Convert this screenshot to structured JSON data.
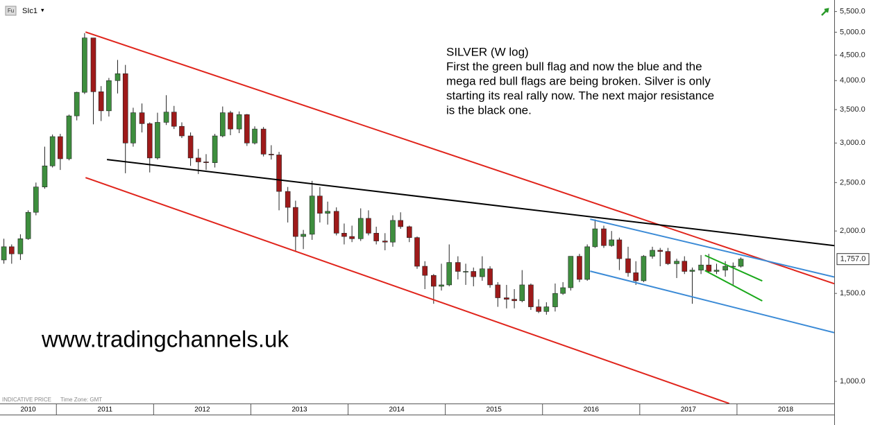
{
  "toolbar": {
    "badge": "Fu",
    "instrument": "SIc1",
    "menu": "▾"
  },
  "chart_data": {
    "type": "candlestick",
    "title": "SILVER (W log)",
    "annotation": [
      "First the green bull flag and now the blue and the",
      "mega red bull flags are being broken. Silver is only",
      "starting its real rally now. The next major resistance",
      "is the black one."
    ],
    "watermark": "www.tradingchannels.uk",
    "footer_note": "INDICATIVE PRICE",
    "time_zone": "Time Zone: GMT",
    "log_scale": true,
    "grid": false,
    "up_color": "#3e8e3e",
    "down_color": "#9e1a1a",
    "xlim": [
      2010.42,
      2019.0
    ],
    "xticks": [
      2010,
      2011,
      2012,
      2013,
      2014,
      2015,
      2016,
      2017,
      2018
    ],
    "ylim": [
      903,
      5800
    ],
    "yticks": [
      {
        "value": 1000,
        "label": "1,000.0"
      },
      {
        "value": 1500,
        "label": "1,500.0"
      },
      {
        "value": 2000,
        "label": "2,000.0"
      },
      {
        "value": 2500,
        "label": "2,500.0"
      },
      {
        "value": 3000,
        "label": "3,000.0"
      },
      {
        "value": 3500,
        "label": "3,500.0"
      },
      {
        "value": 4000,
        "label": "4,000.0"
      },
      {
        "value": 4500,
        "label": "4,500.0"
      },
      {
        "value": 5000,
        "label": "5,000.0"
      },
      {
        "value": 5500,
        "label": "5,500.0"
      }
    ],
    "last_price": {
      "value": 1757,
      "label": "1,757.0"
    },
    "x": [
      2010.46,
      2010.54,
      2010.63,
      2010.71,
      2010.79,
      2010.88,
      2010.96,
      2011.04,
      2011.13,
      2011.21,
      2011.29,
      2011.38,
      2011.46,
      2011.54,
      2011.63,
      2011.71,
      2011.79,
      2011.88,
      2011.96,
      2012.04,
      2012.13,
      2012.21,
      2012.29,
      2012.38,
      2012.46,
      2012.54,
      2012.63,
      2012.71,
      2012.79,
      2012.88,
      2012.96,
      2013.04,
      2013.13,
      2013.21,
      2013.29,
      2013.38,
      2013.46,
      2013.54,
      2013.63,
      2013.71,
      2013.79,
      2013.88,
      2013.96,
      2014.04,
      2014.13,
      2014.21,
      2014.29,
      2014.38,
      2014.46,
      2014.54,
      2014.63,
      2014.71,
      2014.79,
      2014.88,
      2014.96,
      2015.04,
      2015.13,
      2015.21,
      2015.29,
      2015.38,
      2015.46,
      2015.54,
      2015.63,
      2015.71,
      2015.79,
      2015.88,
      2015.96,
      2016.04,
      2016.13,
      2016.21,
      2016.29,
      2016.38,
      2016.46,
      2016.54,
      2016.63,
      2016.71,
      2016.79,
      2016.88,
      2016.96,
      2017.04,
      2017.13,
      2017.21,
      2017.29,
      2017.38,
      2017.46,
      2017.54,
      2017.63,
      2017.71,
      2017.79,
      2017.88,
      2017.96,
      2018.04
    ],
    "open": [
      1750,
      1860,
      1800,
      1930,
      2180,
      2450,
      2700,
      3090,
      2790,
      3400,
      3790,
      4870,
      3800,
      3480,
      4000,
      4130,
      3000,
      3450,
      3280,
      2800,
      3300,
      3460,
      3240,
      3100,
      2800,
      2750,
      2740,
      3100,
      3450,
      3200,
      3420,
      3000,
      3200,
      2850,
      2840,
      2400,
      2230,
      1950,
      1970,
      2350,
      2170,
      2190,
      1980,
      1950,
      1930,
      2120,
      1980,
      1910,
      1900,
      2100,
      2040,
      1940,
      1700,
      1630,
      1550,
      1560,
      1730,
      1660,
      1660,
      1620,
      1680,
      1560,
      1470,
      1460,
      1450,
      1560,
      1410,
      1380,
      1410,
      1500,
      1540,
      1780,
      1600,
      1860,
      2020,
      1870,
      1920,
      1760,
      1650,
      1590,
      1780,
      1830,
      1820,
      1720,
      1740,
      1660,
      1670,
      1710,
      1660,
      1670,
      1700,
      1700
    ],
    "high": [
      1930,
      1880,
      1970,
      2200,
      2500,
      2950,
      3120,
      3130,
      3420,
      3800,
      4980,
      4870,
      3900,
      4050,
      4400,
      4300,
      3530,
      3600,
      3300,
      3450,
      3740,
      3560,
      3300,
      3150,
      2920,
      2850,
      3130,
      3550,
      3480,
      3470,
      3430,
      3240,
      3230,
      2970,
      2880,
      2450,
      2300,
      2010,
      2520,
      2450,
      2290,
      2230,
      2070,
      2050,
      2220,
      2200,
      2040,
      1980,
      2150,
      2180,
      2050,
      1950,
      1740,
      1640,
      1720,
      1880,
      1780,
      1720,
      1690,
      1780,
      1700,
      1580,
      1560,
      1530,
      1670,
      1570,
      1460,
      1440,
      1570,
      1580,
      1780,
      1800,
      1880,
      2110,
      2050,
      2000,
      1940,
      1860,
      1740,
      1790,
      1860,
      1850,
      1850,
      1760,
      1780,
      1690,
      1790,
      1800,
      1720,
      1740,
      1730,
      1770
    ],
    "low": [
      1720,
      1720,
      1750,
      1920,
      2150,
      2430,
      2680,
      2650,
      2770,
      3330,
      3760,
      3270,
      3320,
      3390,
      3770,
      2610,
      2950,
      3150,
      2620,
      2780,
      3260,
      3200,
      3070,
      2700,
      2600,
      2650,
      2680,
      3080,
      3110,
      3140,
      2960,
      2980,
      2820,
      2780,
      2200,
      2080,
      1820,
      1840,
      1920,
      2080,
      2060,
      1960,
      1880,
      1900,
      1910,
      1960,
      1880,
      1830,
      1860,
      2020,
      1900,
      1680,
      1530,
      1430,
      1520,
      1550,
      1600,
      1560,
      1550,
      1590,
      1540,
      1410,
      1400,
      1400,
      1440,
      1390,
      1370,
      1360,
      1380,
      1490,
      1520,
      1580,
      1590,
      1850,
      1850,
      1860,
      1670,
      1620,
      1560,
      1580,
      1760,
      1700,
      1710,
      1610,
      1640,
      1430,
      1640,
      1650,
      1640,
      1620,
      1560,
      1690
    ],
    "close": [
      1860,
      1800,
      1930,
      2180,
      2450,
      2700,
      3090,
      2790,
      3400,
      3790,
      4870,
      3800,
      3480,
      4000,
      4130,
      3000,
      3450,
      3280,
      2800,
      3300,
      3460,
      3240,
      3100,
      2800,
      2750,
      2740,
      3100,
      3450,
      3200,
      3420,
      3000,
      3200,
      2850,
      2840,
      2400,
      2230,
      1950,
      1970,
      2350,
      2170,
      2190,
      1980,
      1950,
      1930,
      2120,
      1980,
      1910,
      1900,
      2100,
      2040,
      1940,
      1700,
      1630,
      1550,
      1560,
      1730,
      1660,
      1660,
      1620,
      1680,
      1560,
      1470,
      1460,
      1450,
      1560,
      1410,
      1380,
      1410,
      1500,
      1540,
      1780,
      1600,
      1860,
      2020,
      1870,
      1920,
      1760,
      1650,
      1590,
      1780,
      1830,
      1820,
      1720,
      1740,
      1660,
      1670,
      1710,
      1660,
      1670,
      1700,
      1700,
      1757
    ],
    "trendlines": [
      {
        "color": "#e0241b",
        "x": [
          2011.3,
          2019.0
        ],
        "y": [
          5004,
          1569
        ]
      },
      {
        "color": "#e0241b",
        "x": [
          2011.3,
          2017.92
        ],
        "y": [
          2558,
          903
        ]
      },
      {
        "color": "#000000",
        "x": [
          2011.52,
          2019.0
        ],
        "y": [
          2780,
          1870
        ]
      },
      {
        "color": "#3a8ad6",
        "x": [
          2016.49,
          2019.0
        ],
        "y": [
          2112,
          1618
        ]
      },
      {
        "color": "#3a8ad6",
        "x": [
          2016.49,
          2019.0
        ],
        "y": [
          1662,
          1252
        ]
      },
      {
        "color": "#1aa81a",
        "x": [
          2017.67,
          2018.26
        ],
        "y": [
          1788,
          1589
        ]
      },
      {
        "color": "#1aa81a",
        "x": [
          2017.67,
          2018.26
        ],
        "y": [
          1667,
          1449
        ]
      }
    ]
  }
}
